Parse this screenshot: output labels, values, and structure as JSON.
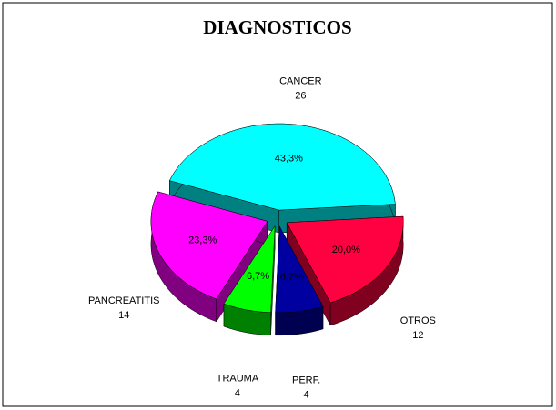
{
  "chart_data": {
    "type": "pie",
    "title": "DIAGNOSTICOS",
    "categories": [
      "CANCER",
      "OTROS",
      "PERF.",
      "TRAUMA",
      "PANCREATITIS"
    ],
    "values": [
      26,
      12,
      4,
      4,
      14
    ],
    "percent_labels": [
      "43,3%",
      "20,0%",
      "6,7%",
      "6,7%",
      "23,3%"
    ],
    "colors": [
      "#00ffff",
      "#ff0040",
      "#0000a0",
      "#00ff00",
      "#ff00ff"
    ]
  }
}
